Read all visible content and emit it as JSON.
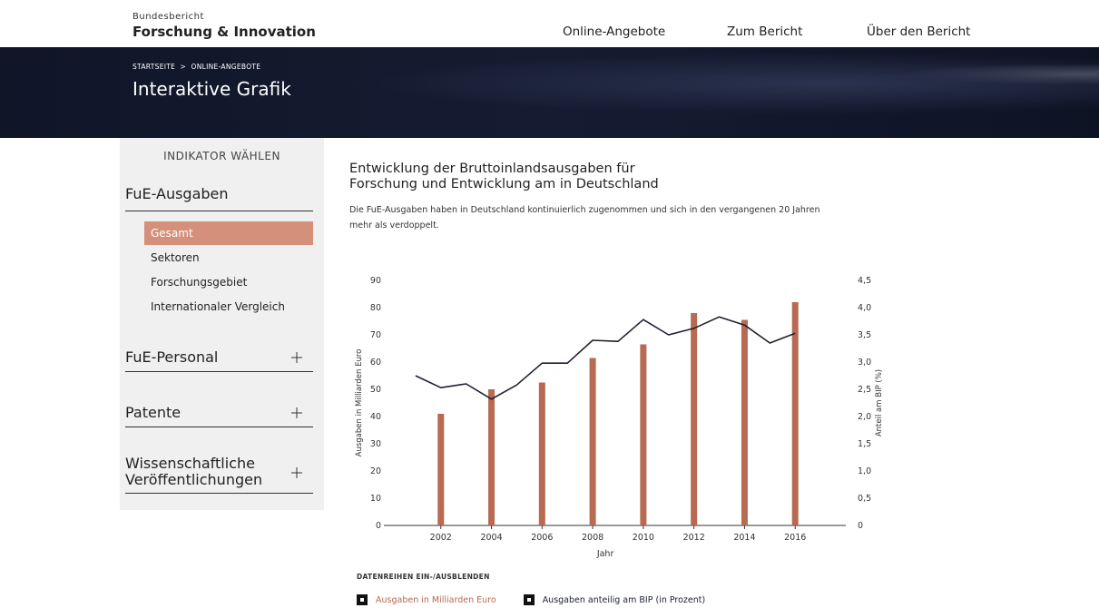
{
  "header": {
    "brand_small": "Bundesbericht",
    "brand": "Forschung & Innovation",
    "nav": [
      "Online-Angebote",
      "Zum Bericht",
      "Über den Bericht"
    ]
  },
  "banner": {
    "breadcrumb": [
      "STARTSEITE",
      ">",
      "ONLINE-ANGEBOTE"
    ],
    "title": "Interaktive Grafik"
  },
  "sidebar": {
    "heading": "INDIKATOR WÄHLEN",
    "groups": [
      {
        "label": "FuE-Ausgaben",
        "items": [
          "Gesamt",
          "Sektoren",
          "Forschungsgebiet",
          "Internationaler Vergleich"
        ],
        "active": 0
      },
      {
        "label": "FuE-Personal"
      },
      {
        "label": "Patente"
      },
      {
        "label": "Wissenschaftliche Veröffentlichungen"
      }
    ]
  },
  "chart_data": {
    "type": "bar",
    "title_lines": [
      "Entwicklung der Bruttoinlandsausgaben für",
      "Forschung und Entwicklung am in Deutschland"
    ],
    "subtitle": "Die FuE-Ausgaben haben in Deutschland kontinuierlich zugenommen und sich in den vergangenen 20 Jahren mehr als verdoppelt.",
    "xlabel": "Jahr",
    "ylabel": "Ausgaben in Milliarden Euro",
    "y2label": "Anteil am BIP (%)",
    "xlim": [
      1999.75,
      2018
    ],
    "xticks": [
      2002,
      2004,
      2006,
      2008,
      2010,
      2012,
      2014,
      2016
    ],
    "ylim": [
      0,
      90
    ],
    "yticks": [
      0,
      10,
      20,
      30,
      40,
      50,
      60,
      70,
      80,
      90
    ],
    "y2lim": [
      0,
      4.5
    ],
    "y2ticks": [
      0,
      {
        "value": 0.5,
        "label": "0,5"
      },
      {
        "value": 1,
        "label": "1,0"
      },
      {
        "value": 1.5,
        "label": "1,5"
      },
      {
        "value": 2,
        "label": "2,0"
      },
      {
        "value": 2.5,
        "label": "2,5"
      },
      {
        "value": 3,
        "label": "3,0"
      },
      {
        "value": 3.5,
        "label": "3,5"
      },
      {
        "value": 4,
        "label": "4,0"
      },
      {
        "value": 4.5,
        "label": "4,5"
      }
    ],
    "grid": false,
    "series": [
      {
        "name": "Ausgaben in Milliarden Euro",
        "type": "bar",
        "color": "#b86a52",
        "x": [
          2002,
          2004,
          2006,
          2008,
          2010,
          2012,
          2014,
          2016
        ],
        "values": [
          41,
          50,
          52.5,
          61.5,
          66.5,
          78,
          75.5,
          82
        ]
      },
      {
        "name": "Ausgaben anteilig am BIP (in Prozent)",
        "type": "line",
        "axis": "y2",
        "color": "#1c2130",
        "x": [
          2001,
          2002,
          2003,
          2004,
          2005,
          2006,
          2007,
          2008,
          2009,
          2010,
          2011,
          2012,
          2013,
          2014,
          2015,
          2016
        ],
        "values": [
          2.75,
          2.53,
          2.6,
          2.32,
          2.58,
          2.98,
          2.98,
          3.4,
          3.38,
          3.78,
          3.5,
          3.62,
          3.83,
          3.68,
          3.35,
          3.53
        ]
      }
    ]
  },
  "legend_heading": "DATENREIHEN EIN-/AUSBLENDEN"
}
